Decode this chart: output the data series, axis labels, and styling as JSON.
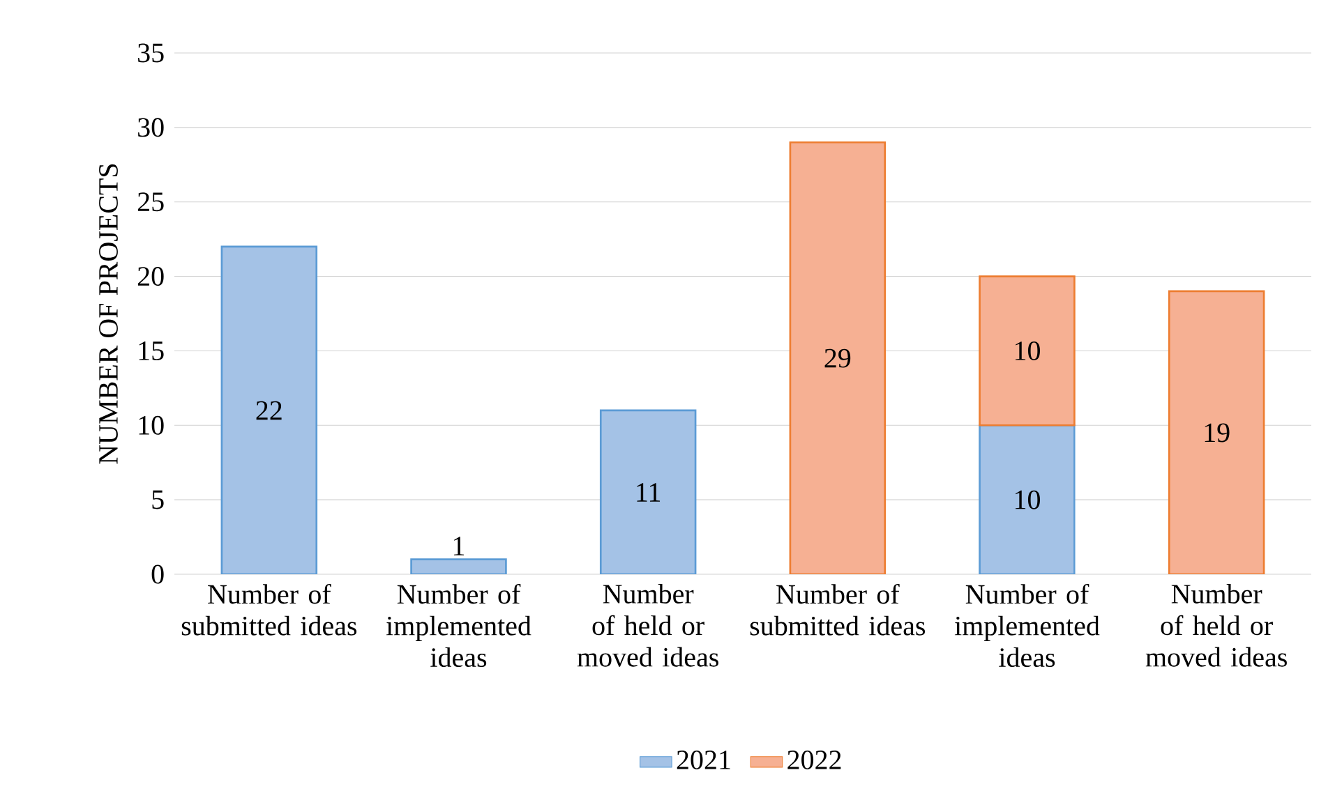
{
  "chart_data": {
    "type": "bar",
    "stacked": true,
    "ylabel": "NUMBER OF PROJECTS",
    "categories": [
      "Number of submitted ideas",
      "Number of implemented ideas",
      "Number of held or moved ideas",
      "Number of submitted ideas",
      "Number of implemented ideas",
      "Number of held or moved ideas"
    ],
    "series": [
      {
        "name": "2021",
        "color": "#a4c2e6",
        "values": [
          22,
          1,
          11,
          null,
          10,
          null
        ]
      },
      {
        "name": "2022",
        "color": "#f6b093",
        "values": [
          null,
          null,
          null,
          29,
          10,
          19
        ]
      }
    ],
    "ylim": [
      0,
      35
    ],
    "yticks": [
      0,
      5,
      10,
      15,
      20,
      25,
      30,
      35
    ],
    "grid": "y",
    "legend": "bottom",
    "data_labels": true
  }
}
